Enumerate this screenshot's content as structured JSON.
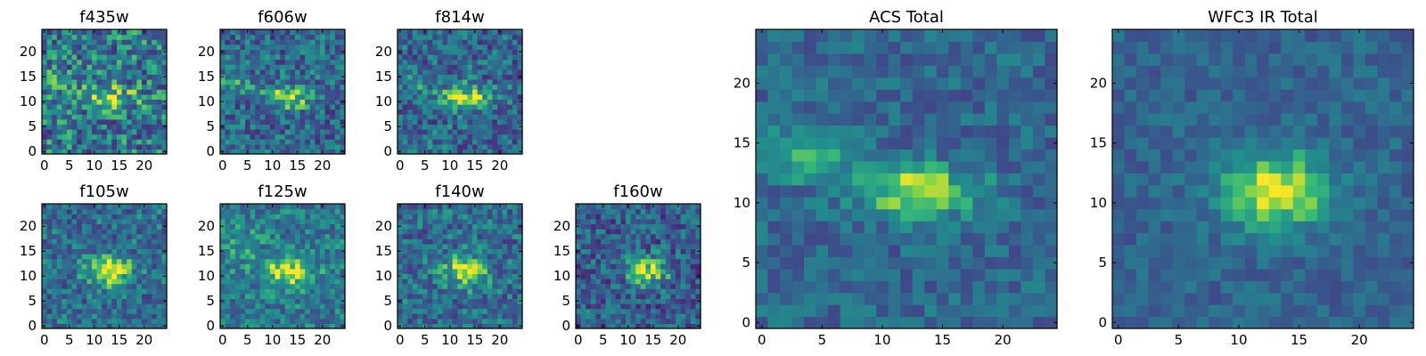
{
  "chart_data": {
    "type": "heatmap",
    "colormap": "viridis",
    "panels": [
      {
        "title": "f435w",
        "grid": 25,
        "xticks": [
          "0",
          "5",
          "10",
          "15",
          "20"
        ],
        "yticks": [
          "0",
          "5",
          "10",
          "15",
          "20"
        ],
        "xlim": [
          0,
          24
        ],
        "ylim": [
          0,
          24
        ],
        "noise": 0.32,
        "base": 0.48,
        "blobs": [
          {
            "cx": 13,
            "cy": 11,
            "sx": 3.5,
            "sy": 1.6,
            "amp": 0.42
          },
          {
            "cx": 2,
            "cy": 14,
            "sx": 2.5,
            "sy": 1.3,
            "amp": 0.25
          }
        ]
      },
      {
        "title": "f606w",
        "grid": 25,
        "xticks": [
          "0",
          "5",
          "10",
          "15",
          "20"
        ],
        "yticks": [
          "0",
          "5",
          "10",
          "15",
          "20"
        ],
        "xlim": [
          0,
          24
        ],
        "ylim": [
          0,
          24
        ],
        "noise": 0.26,
        "base": 0.42,
        "blobs": [
          {
            "cx": 13,
            "cy": 11,
            "sx": 3.5,
            "sy": 1.6,
            "amp": 0.5
          },
          {
            "cx": 2,
            "cy": 14,
            "sx": 2.5,
            "sy": 1.3,
            "amp": 0.28
          }
        ]
      },
      {
        "title": "f814w",
        "grid": 25,
        "xticks": [
          "0",
          "5",
          "10",
          "15",
          "20"
        ],
        "yticks": [
          "0",
          "5",
          "10",
          "15",
          "20"
        ],
        "xlim": [
          0,
          24
        ],
        "ylim": [
          0,
          24
        ],
        "noise": 0.26,
        "base": 0.42,
        "blobs": [
          {
            "cx": 13,
            "cy": 11,
            "sx": 3.2,
            "sy": 1.6,
            "amp": 0.55
          },
          {
            "cx": 3,
            "cy": 14,
            "sx": 2.5,
            "sy": 1.3,
            "amp": 0.2
          }
        ]
      },
      {
        "title": "f105w",
        "grid": 25,
        "xticks": [
          "0",
          "5",
          "10",
          "15",
          "20"
        ],
        "yticks": [
          "0",
          "5",
          "10",
          "15",
          "20"
        ],
        "xlim": [
          0,
          24
        ],
        "ylim": [
          0,
          24
        ],
        "noise": 0.24,
        "base": 0.45,
        "blobs": [
          {
            "cx": 13,
            "cy": 11,
            "sx": 3.2,
            "sy": 2.2,
            "amp": 0.5
          }
        ]
      },
      {
        "title": "f125w",
        "grid": 25,
        "xticks": [
          "0",
          "5",
          "10",
          "15",
          "20"
        ],
        "yticks": [
          "0",
          "5",
          "10",
          "15",
          "20"
        ],
        "xlim": [
          0,
          24
        ],
        "ylim": [
          0,
          24
        ],
        "noise": 0.22,
        "base": 0.5,
        "blobs": [
          {
            "cx": 13,
            "cy": 11,
            "sx": 3.5,
            "sy": 2.2,
            "amp": 0.45
          },
          {
            "cx": 3,
            "cy": 16,
            "sx": 3,
            "sy": 3,
            "amp": 0.15
          }
        ]
      },
      {
        "title": "f140w",
        "grid": 25,
        "xticks": [
          "0",
          "5",
          "10",
          "15",
          "20"
        ],
        "yticks": [
          "0",
          "5",
          "10",
          "15",
          "20"
        ],
        "xlim": [
          0,
          24
        ],
        "ylim": [
          0,
          24
        ],
        "noise": 0.24,
        "base": 0.44,
        "blobs": [
          {
            "cx": 13,
            "cy": 11,
            "sx": 3,
            "sy": 2.2,
            "amp": 0.5
          }
        ]
      },
      {
        "title": "f160w",
        "grid": 25,
        "xticks": [
          "0",
          "5",
          "10",
          "15",
          "20"
        ],
        "yticks": [
          "0",
          "5",
          "10",
          "15",
          "20"
        ],
        "xlim": [
          0,
          24
        ],
        "ylim": [
          0,
          24
        ],
        "noise": 0.26,
        "base": 0.38,
        "blobs": [
          {
            "cx": 14,
            "cy": 11,
            "sx": 2.8,
            "sy": 2.0,
            "amp": 0.55
          }
        ]
      },
      {
        "title": "ACS Total",
        "grid": 25,
        "xticks": [
          "0",
          "5",
          "10",
          "15",
          "20"
        ],
        "yticks": [
          "0",
          "5",
          "10",
          "15",
          "20"
        ],
        "xlim": [
          0,
          24
        ],
        "ylim": [
          0,
          24
        ],
        "noise": 0.16,
        "base": 0.42,
        "blobs": [
          {
            "cx": 13,
            "cy": 11,
            "sx": 3.5,
            "sy": 1.5,
            "amp": 0.55
          },
          {
            "cx": 3,
            "cy": 14,
            "sx": 3,
            "sy": 1.3,
            "amp": 0.38
          }
        ]
      },
      {
        "title": "WFC3 IR Total",
        "grid": 25,
        "xticks": [
          "0",
          "5",
          "10",
          "15",
          "20"
        ],
        "yticks": [
          "0",
          "5",
          "10",
          "15",
          "20"
        ],
        "xlim": [
          0,
          24
        ],
        "ylim": [
          0,
          24
        ],
        "noise": 0.12,
        "base": 0.4,
        "blobs": [
          {
            "cx": 13,
            "cy": 11,
            "sx": 3.2,
            "sy": 2.4,
            "amp": 0.58
          }
        ]
      }
    ]
  }
}
